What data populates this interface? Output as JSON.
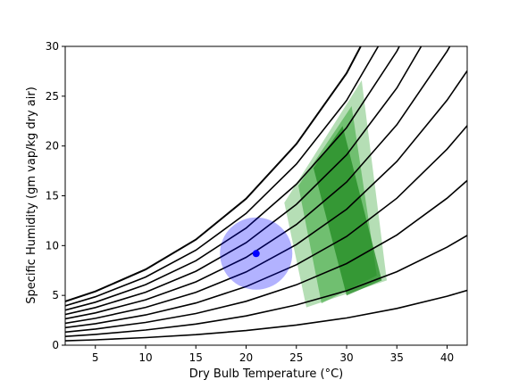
{
  "chart_data": {
    "type": "line",
    "title": "",
    "xlabel": "Dry Bulb Temperature (°C)",
    "ylabel": "Specific Humidity (gm vap/kg dry air)",
    "xlim": [
      2,
      42
    ],
    "ylim": [
      0,
      30
    ],
    "x_ticks": [
      5,
      10,
      15,
      20,
      25,
      30,
      35,
      40
    ],
    "y_ticks": [
      0,
      5,
      10,
      15,
      20,
      25,
      30
    ],
    "grid": false,
    "legend": "none",
    "relative_humidity_curves": {
      "relative_humidity_percent": [
        10,
        20,
        30,
        40,
        50,
        60,
        70,
        80,
        90,
        100
      ],
      "x_samples": [
        2,
        5,
        10,
        15,
        20,
        25,
        30,
        35,
        40,
        42
      ],
      "curve_100_y": [
        4.4,
        5.4,
        7.6,
        10.6,
        14.7,
        20.2,
        27.3,
        36.9,
        49.2,
        55.1
      ],
      "color": "#000000"
    },
    "comfort_zones": [
      {
        "name": "",
        "color": "#2ca02c",
        "opacity": 0.35,
        "polygon": [
          [
            23.8,
            14.3
          ],
          [
            31.5,
            26.6
          ],
          [
            34.0,
            6.5
          ],
          [
            26.0,
            3.8
          ]
        ]
      },
      {
        "name": "",
        "color": "#2ca02c",
        "opacity": 0.5,
        "polygon": [
          [
            25.2,
            16.0
          ],
          [
            30.5,
            24.0
          ],
          [
            33.0,
            7.0
          ],
          [
            27.5,
            4.2
          ]
        ]
      },
      {
        "name": "",
        "color": "#228b22",
        "opacity": 0.75,
        "polygon": [
          [
            26.7,
            17.8
          ],
          [
            29.6,
            22.0
          ],
          [
            33.5,
            6.5
          ],
          [
            30.0,
            5.0
          ]
        ]
      }
    ],
    "current_condition": {
      "x": 21,
      "y": 9.2,
      "radius_x": 3.6,
      "color": "#0000ff",
      "circle_opacity": 0.3
    }
  }
}
